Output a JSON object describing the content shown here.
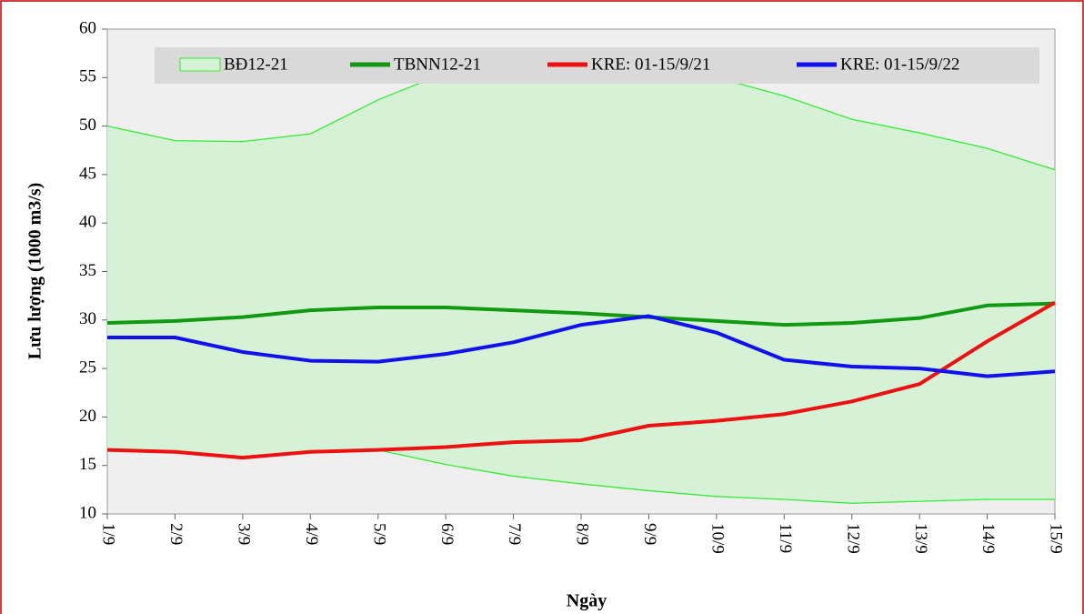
{
  "chart_data": {
    "type": "line",
    "xlabel": "Ngày",
    "ylabel": "Lưu lượng (1000 m3/s)",
    "categories": [
      "1/9",
      "2/9",
      "3/9",
      "4/9",
      "5/9",
      "6/9",
      "7/9",
      "8/9",
      "9/9",
      "10/9",
      "11/9",
      "12/9",
      "13/9",
      "14/9",
      "15/9"
    ],
    "ylim": [
      10,
      60
    ],
    "yticks": [
      10,
      15,
      20,
      25,
      30,
      35,
      40,
      45,
      50,
      55,
      60
    ],
    "band": {
      "name": "BĐ12-21",
      "color": "#33ee33",
      "fill": "#d6f2d6",
      "high": [
        50,
        48.5,
        48.4,
        49.2,
        52.7,
        55.5,
        56.5,
        57,
        56.5,
        55,
        53.1,
        50.7,
        49.3,
        47.7,
        45.5
      ],
      "low": [
        16.6,
        16.4,
        15.8,
        16.4,
        16.6,
        15.1,
        13.9,
        13.1,
        12.4,
        11.8,
        11.5,
        11.1,
        11.3,
        11.5,
        11.5
      ]
    },
    "series": [
      {
        "name": "TBNN12-21",
        "color": "#129912",
        "values": [
          29.7,
          29.9,
          30.3,
          31.0,
          31.3,
          31.3,
          31.0,
          30.7,
          30.3,
          29.9,
          29.5,
          29.7,
          30.2,
          31.5,
          31.7
        ]
      },
      {
        "name": "KRE: 01-15/9/21",
        "color": "#ee1111",
        "values": [
          16.6,
          16.4,
          15.8,
          16.4,
          16.6,
          16.9,
          17.4,
          17.6,
          19.1,
          19.6,
          20.3,
          21.6,
          23.4,
          27.8,
          31.8
        ]
      },
      {
        "name": "KRE: 01-15/9/22",
        "color": "#1111ee",
        "values": [
          28.2,
          28.2,
          26.7,
          25.8,
          25.7,
          26.5,
          27.7,
          29.5,
          30.4,
          28.7,
          25.9,
          25.2,
          25.0,
          24.2,
          24.7
        ]
      }
    ]
  }
}
